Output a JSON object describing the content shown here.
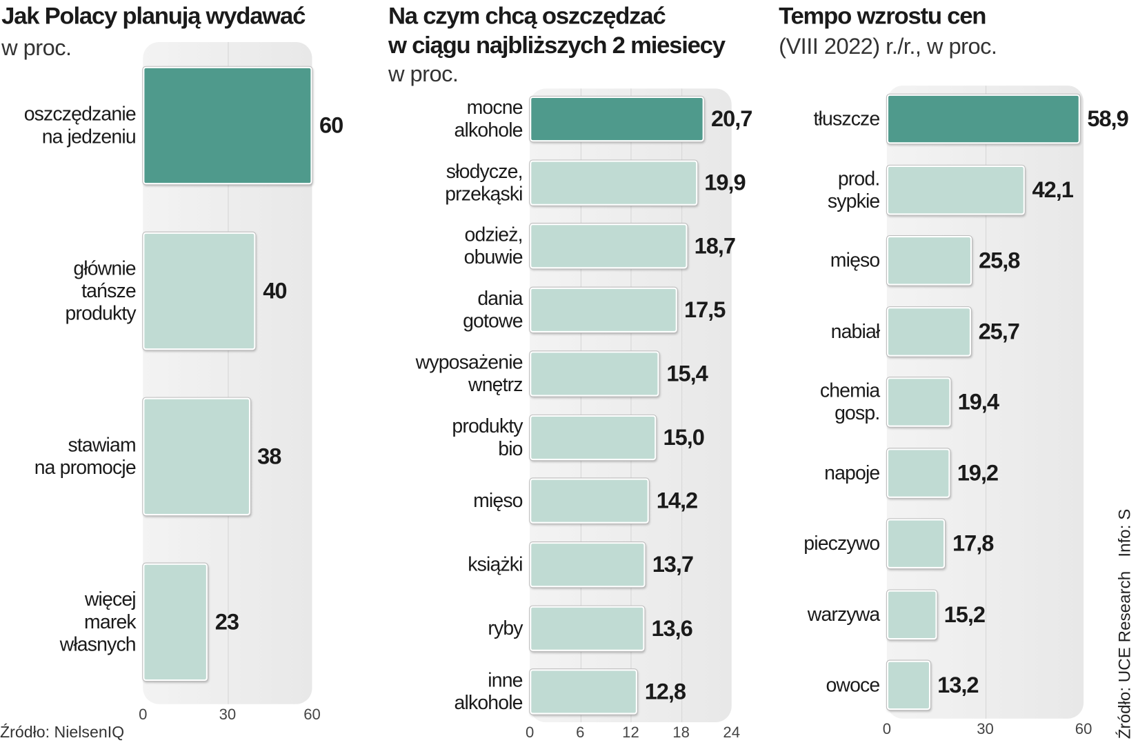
{
  "colors": {
    "highlight": "#4f9a8c",
    "bar": "#c0dbd3",
    "panel": "#ececec"
  },
  "chart_data": [
    {
      "type": "bar",
      "orientation": "horizontal",
      "title": "Jak Polacy planują wydawać",
      "subtitle": "w proc.",
      "categories": [
        "oszczędzanie\nna jedzeniu",
        "głównie\ntańsze\nprodukty",
        "stawiam\nna promocje",
        "więcej\nmarek\nwłasnych"
      ],
      "values": [
        60,
        40,
        38,
        23
      ],
      "value_labels": [
        "60",
        "40",
        "38",
        "23"
      ],
      "xlim": [
        0,
        60
      ],
      "xticks": [
        "0",
        "30",
        "60"
      ],
      "source": "Źródło: NielsenIQ"
    },
    {
      "type": "bar",
      "orientation": "horizontal",
      "title": "Na czym chcą oszczędzać",
      "title2": "w ciągu najbliższych 2 miesiecy",
      "subtitle": "w proc.",
      "categories": [
        "mocne\nalkohole",
        "słodycze,\nprzekąski",
        "odzież,\nobuwie",
        "dania\ngotowe",
        "wyposażenie\nwnętrz",
        "produkty\nbio",
        "mięso",
        "książki",
        "ryby",
        "inne\nalkohole"
      ],
      "values": [
        20.7,
        19.9,
        18.7,
        17.5,
        15.4,
        15.0,
        14.2,
        13.7,
        13.6,
        12.8
      ],
      "value_labels": [
        "20,7",
        "19,9",
        "18,7",
        "17,5",
        "15,4",
        "15,0",
        "14,2",
        "13,7",
        "13,6",
        "12,8"
      ],
      "xlim": [
        0,
        24
      ],
      "xticks": [
        "0",
        "6",
        "12",
        "18",
        "24"
      ]
    },
    {
      "type": "bar",
      "orientation": "horizontal",
      "title": "Tempo wzrostu cen",
      "subtitle": "(VIII 2022) r./r., w proc.",
      "categories": [
        "tłuszcze",
        "prod.\nsypkie",
        "mięso",
        "nabiał",
        "chemia\ngosp.",
        "napoje",
        "pieczywo",
        "warzywa",
        "owoce"
      ],
      "values": [
        58.9,
        42.1,
        25.8,
        25.7,
        19.4,
        19.2,
        17.8,
        15.2,
        13.2
      ],
      "value_labels": [
        "58,9",
        "42,1",
        "25,8",
        "25,7",
        "19,4",
        "19,2",
        "17,8",
        "15,2",
        "13,2"
      ],
      "xlim": [
        0,
        60
      ],
      "xticks": [
        "0",
        "30",
        "60"
      ],
      "source": "Źródło: UCE Research   Info: S"
    }
  ]
}
